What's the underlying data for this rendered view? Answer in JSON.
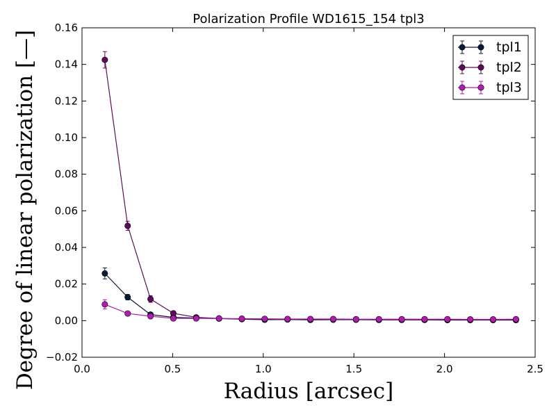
{
  "chart_data": {
    "type": "line",
    "title": "Polarization Profile WD1615_154 tpl3",
    "xlabel": "Radius [arcsec]",
    "ylabel": "Degree of linear polarization [—]",
    "xlim": [
      0.0,
      2.5
    ],
    "ylim": [
      -0.02,
      0.16
    ],
    "xticks": [
      0.0,
      0.5,
      1.0,
      1.5,
      2.0,
      2.5
    ],
    "xtick_labels": [
      "0.0",
      "0.5",
      "1.0",
      "1.5",
      "2.0",
      "2.5"
    ],
    "yticks": [
      -0.02,
      0.0,
      0.02,
      0.04,
      0.06,
      0.08,
      0.1,
      0.12,
      0.14,
      0.16
    ],
    "ytick_labels": [
      "−0.02",
      "0.00",
      "0.02",
      "0.04",
      "0.06",
      "0.08",
      "0.10",
      "0.12",
      "0.14",
      "0.16"
    ],
    "grid": false,
    "legend_position": "top-right",
    "x": [
      0.126,
      0.252,
      0.378,
      0.504,
      0.63,
      0.756,
      0.882,
      1.008,
      1.134,
      1.26,
      1.386,
      1.512,
      1.638,
      1.764,
      1.89,
      2.016,
      2.142,
      2.268,
      2.394
    ],
    "series": [
      {
        "name": "tpl1",
        "color": "#0b1a3a",
        "values": [
          0.0258,
          0.0128,
          0.0033,
          0.0018,
          0.0014,
          0.0011,
          0.0008,
          0.0005,
          0.0006,
          0.0004,
          0.0005,
          0.0005,
          0.0004,
          0.0004,
          0.0004,
          0.0003,
          0.0003,
          0.0003,
          0.0003
        ],
        "errors": [
          0.003,
          0.0015,
          0.0012,
          0.0008,
          0.0006,
          0.0006,
          0.0006,
          0.0008,
          0.0006,
          0.0008,
          0.0006,
          0.0006,
          0.0005,
          0.0005,
          0.0005,
          0.0005,
          0.0005,
          0.0005,
          0.0005
        ]
      },
      {
        "name": "tpl2",
        "color": "#5e0a5a",
        "values": [
          0.1425,
          0.0518,
          0.0118,
          0.004,
          0.0018,
          0.0012,
          0.0009,
          0.0008,
          0.0008,
          0.0007,
          0.0007,
          0.0006,
          0.0005,
          0.0005,
          0.0005,
          0.0005,
          0.0005,
          0.0005,
          0.0006
        ],
        "errors": [
          0.0045,
          0.0025,
          0.0018,
          0.0012,
          0.0008,
          0.0007,
          0.0006,
          0.0006,
          0.0006,
          0.0006,
          0.0006,
          0.0005,
          0.0005,
          0.0005,
          0.0005,
          0.0005,
          0.0005,
          0.0005,
          0.0005
        ]
      },
      {
        "name": "tpl3",
        "color": "#b01cb0",
        "values": [
          0.0089,
          0.0039,
          0.0024,
          0.0012,
          0.0012,
          0.0012,
          0.0011,
          0.001,
          0.0009,
          0.0009,
          0.0009,
          0.0008,
          0.0008,
          0.0008,
          0.0008,
          0.0008,
          0.0007,
          0.0007,
          0.0008
        ],
        "errors": [
          0.0025,
          0.0012,
          0.001,
          0.0007,
          0.0006,
          0.0006,
          0.0005,
          0.0005,
          0.0005,
          0.0005,
          0.0005,
          0.0004,
          0.0004,
          0.0004,
          0.0004,
          0.0004,
          0.0004,
          0.0004,
          0.0004
        ]
      }
    ]
  }
}
